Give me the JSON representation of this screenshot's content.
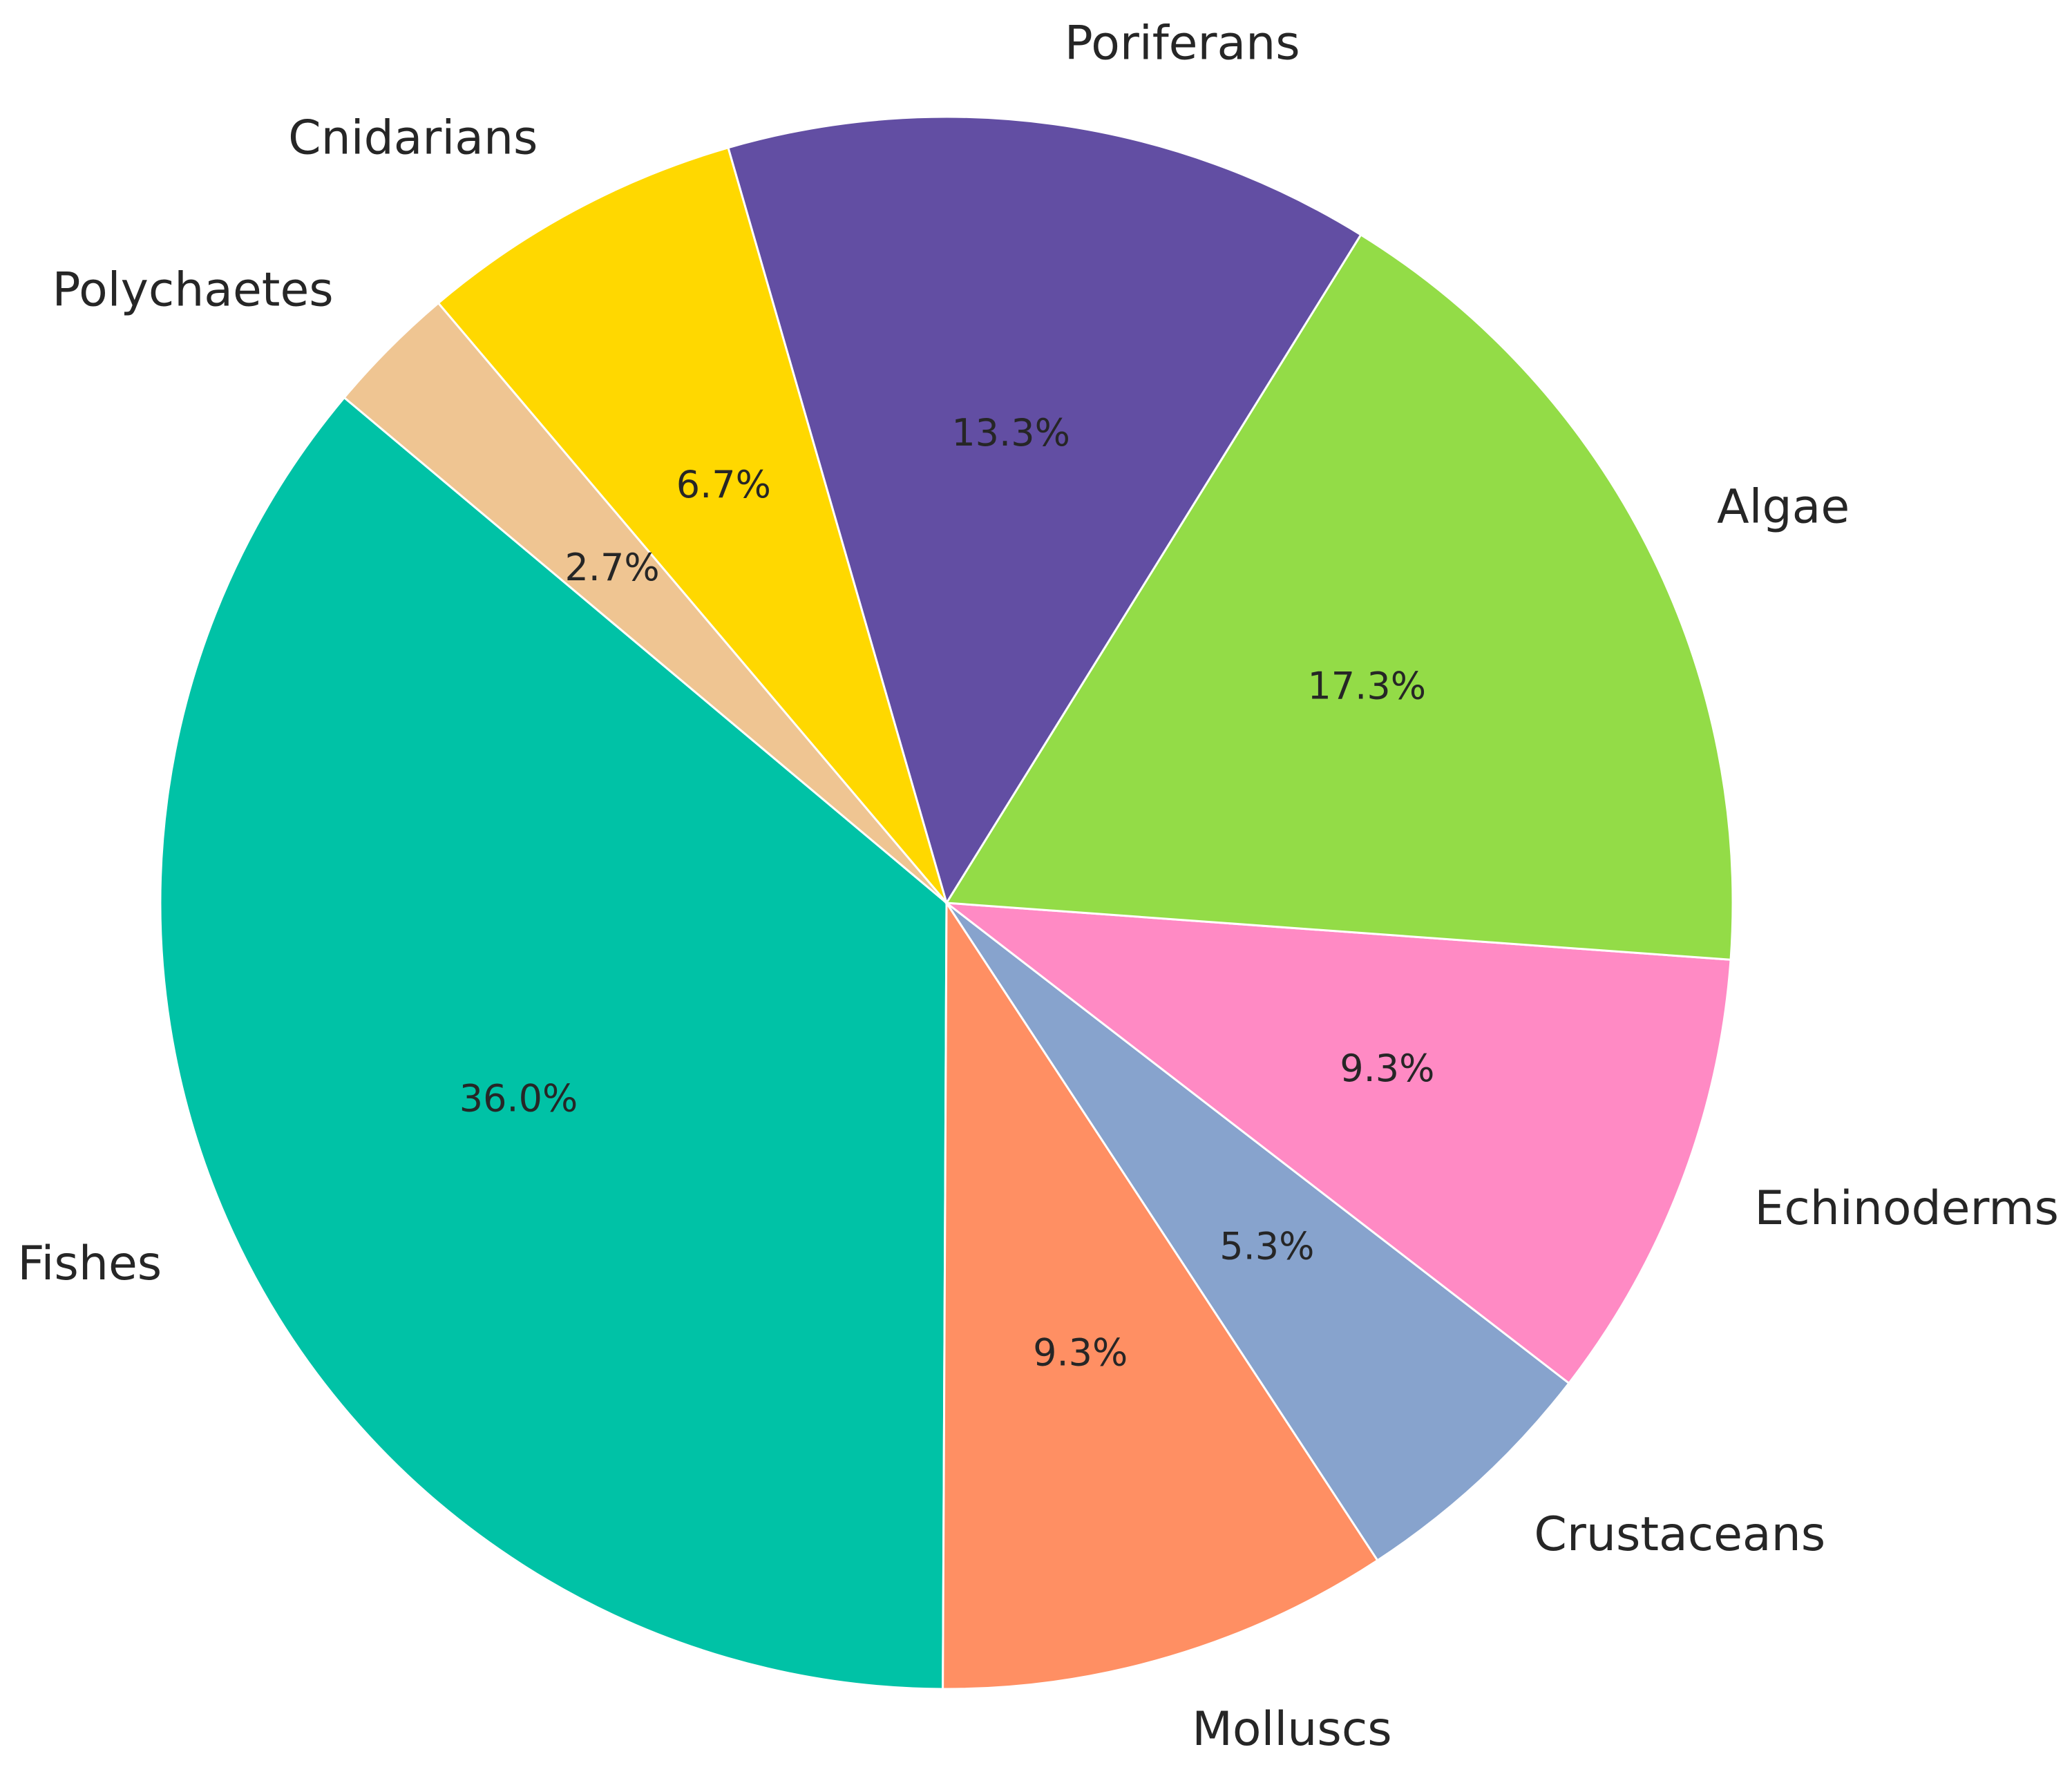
{
  "chart_data": {
    "type": "pie",
    "categories": [
      "Fishes",
      "Molluscs",
      "Crustaceans",
      "Echinoderms",
      "Algae",
      "Poriferans",
      "Cnidarians",
      "Polychaetes"
    ],
    "values": [
      36.0,
      9.3,
      5.3,
      9.3,
      17.3,
      13.3,
      6.7,
      2.7
    ],
    "value_labels": [
      "36.0%",
      "9.3%",
      "5.3%",
      "9.3%",
      "17.3%",
      "13.3%",
      "6.7%",
      "2.7%"
    ],
    "colors": [
      "#00c2a6",
      "#ff8f63",
      "#87a3cd",
      "#ff8ac4",
      "#93dc47",
      "#624ea3",
      "#ffd800",
      "#efc592"
    ],
    "startangle": 140
  }
}
